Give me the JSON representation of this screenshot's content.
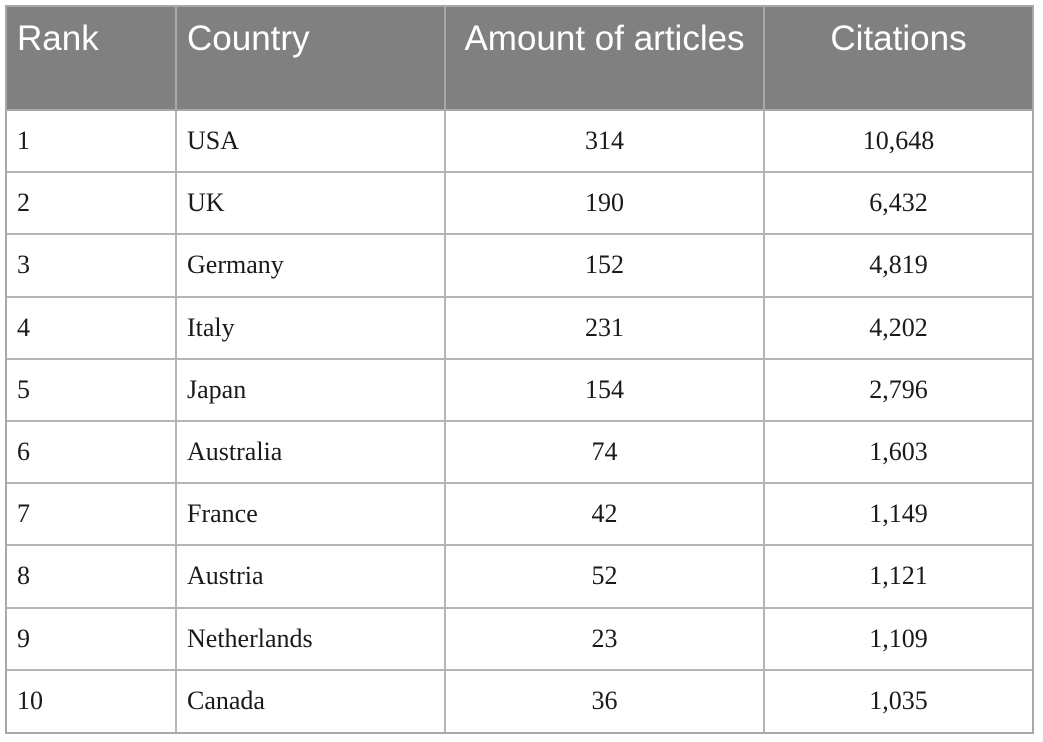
{
  "table": {
    "headers": {
      "rank": "Rank",
      "country": "Country",
      "articles": "Amount of articles",
      "citations": "Citations"
    },
    "rows": [
      {
        "rank": "1",
        "country": "USA",
        "articles": "314",
        "citations": "10,648"
      },
      {
        "rank": "2",
        "country": "UK",
        "articles": "190",
        "citations": "6,432"
      },
      {
        "rank": "3",
        "country": "Germany",
        "articles": "152",
        "citations": "4,819"
      },
      {
        "rank": "4",
        "country": "Italy",
        "articles": "231",
        "citations": "4,202"
      },
      {
        "rank": "5",
        "country": "Japan",
        "articles": "154",
        "citations": "2,796"
      },
      {
        "rank": "6",
        "country": "Australia",
        "articles": "74",
        "citations": "1,603"
      },
      {
        "rank": "7",
        "country": "France",
        "articles": "42",
        "citations": "1,149"
      },
      {
        "rank": "8",
        "country": "Austria",
        "articles": "52",
        "citations": "1,121"
      },
      {
        "rank": "9",
        "country": "Netherlands",
        "articles": "23",
        "citations": "1,109"
      },
      {
        "rank": "10",
        "country": "Canada",
        "articles": "36",
        "citations": "1,035"
      }
    ]
  },
  "colors": {
    "header_background": "#808080",
    "header_text": "#ffffff",
    "grid_line": "#b5b5b5"
  }
}
